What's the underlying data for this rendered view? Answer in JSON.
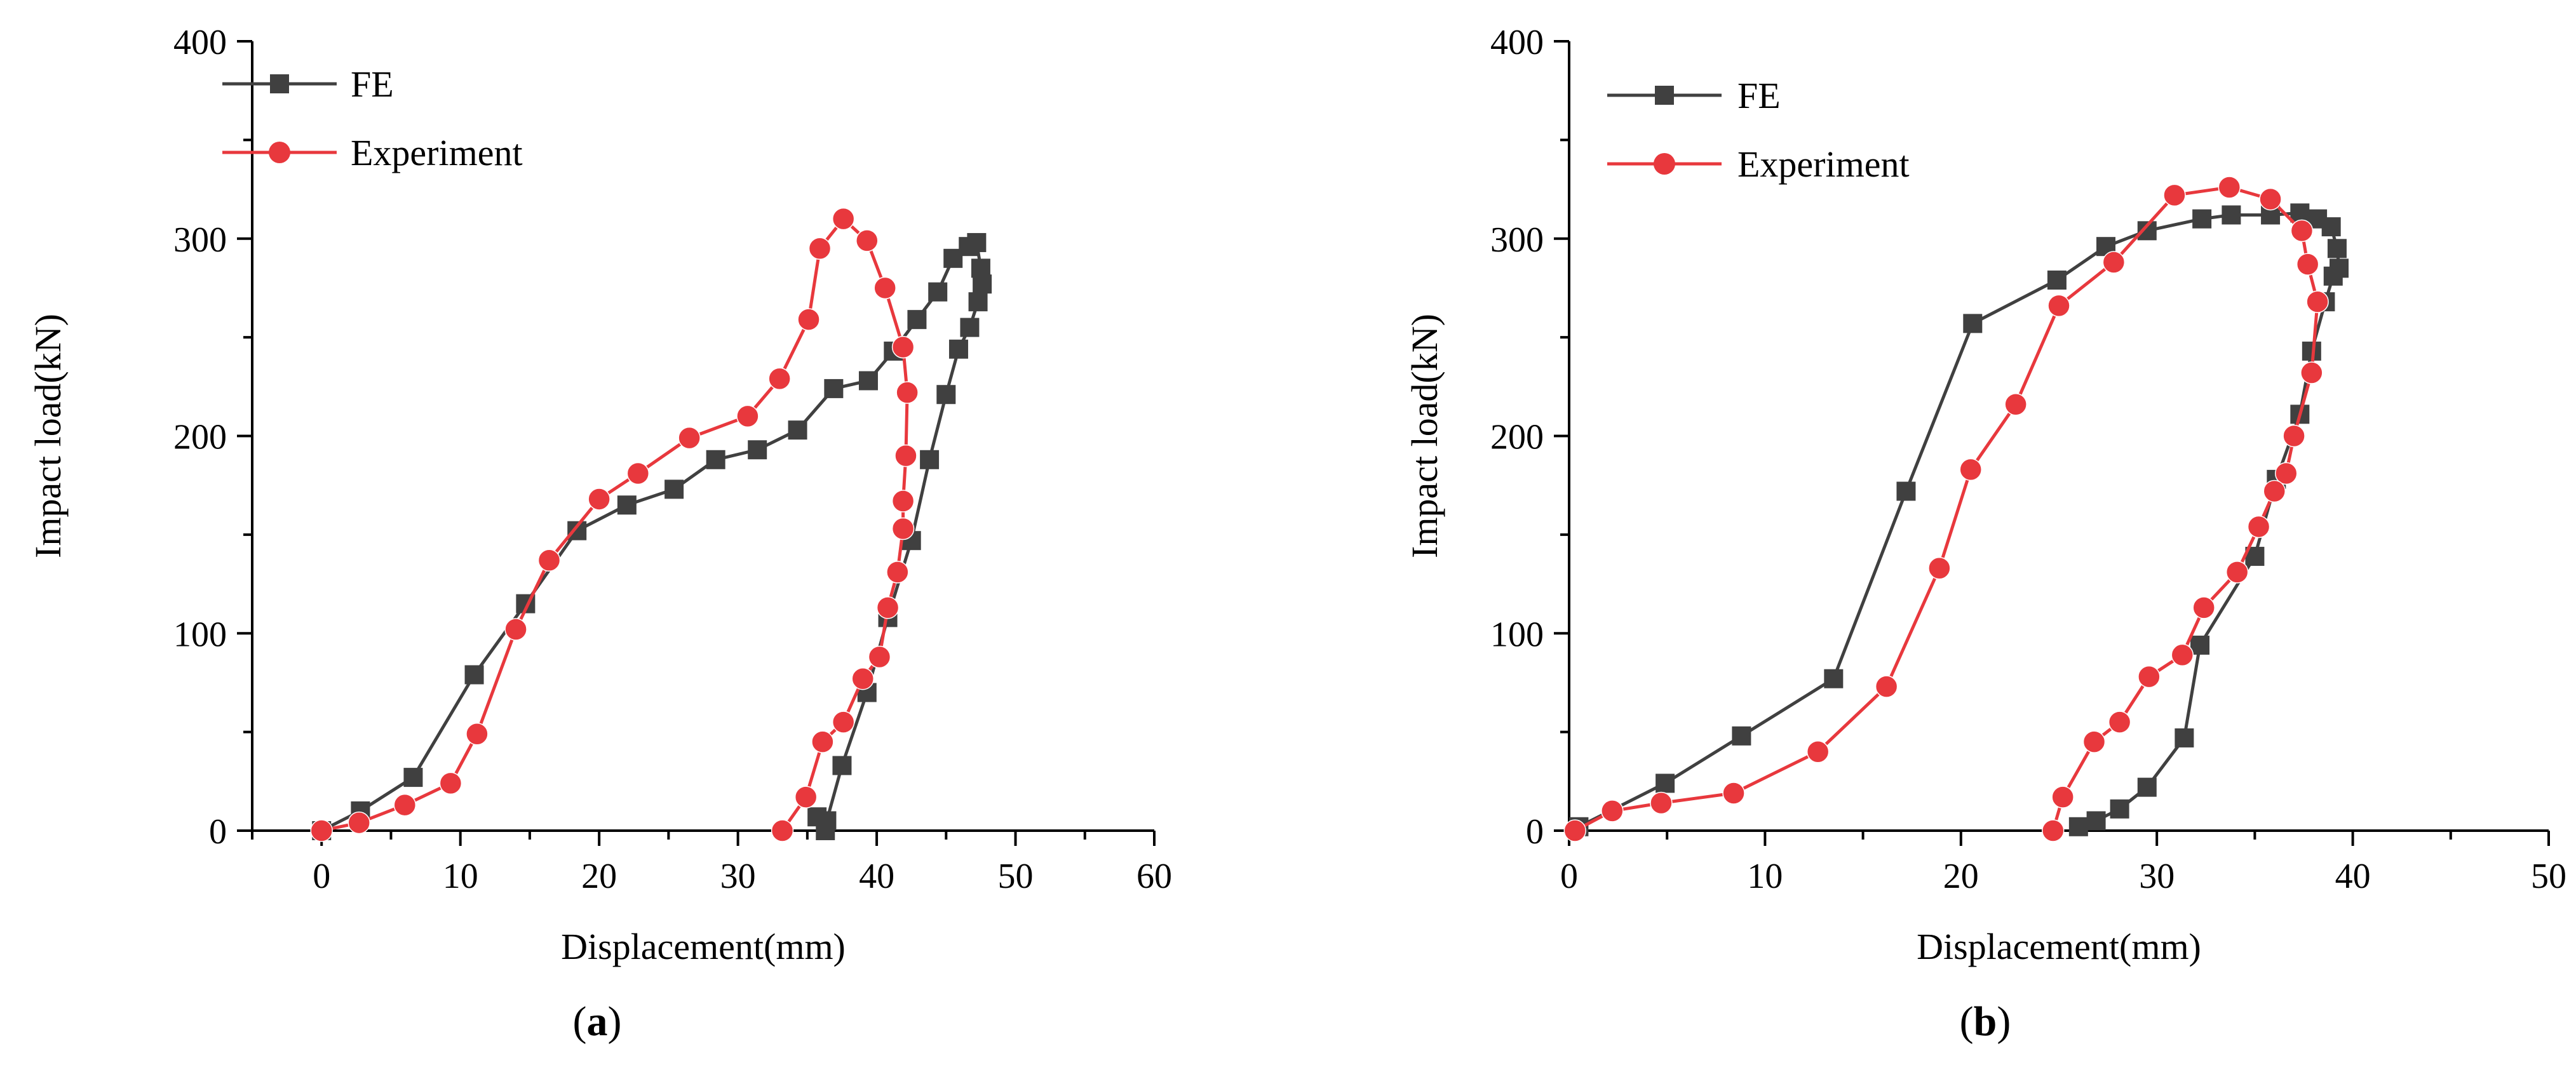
{
  "colors": {
    "fe": "#404040",
    "experiment": "#e8383d",
    "axis": "#000000"
  },
  "chart_data": [
    {
      "type": "line",
      "caption_letter": "a",
      "xlabel": "Displacement(mm)",
      "ylabel": "Impact load(kN)",
      "xlim": [
        -5,
        60
      ],
      "ylim": [
        0,
        400
      ],
      "xticks": [
        0,
        10,
        20,
        30,
        40,
        50,
        60
      ],
      "yticks": [
        0,
        100,
        200,
        300,
        400
      ],
      "grid": false,
      "legend_position": "top-left",
      "series": [
        {
          "name": "FE",
          "marker": "square",
          "points": [
            [
              0,
              0
            ],
            [
              2.8,
              10
            ],
            [
              6.6,
              27
            ],
            [
              11,
              79
            ],
            [
              14.7,
              115
            ],
            [
              18.4,
              152
            ],
            [
              22,
              165
            ],
            [
              25.4,
              173
            ],
            [
              28.4,
              188
            ],
            [
              31.4,
              193
            ],
            [
              34.3,
              203
            ],
            [
              36.9,
              224
            ],
            [
              39.4,
              228
            ],
            [
              41.2,
              243
            ],
            [
              42.9,
              259
            ],
            [
              44.4,
              273
            ],
            [
              45.5,
              290
            ],
            [
              46.6,
              296
            ],
            [
              47.2,
              298
            ],
            [
              47.5,
              285
            ],
            [
              47.6,
              277
            ],
            [
              47.3,
              268
            ],
            [
              46.7,
              255
            ],
            [
              45.9,
              244
            ],
            [
              45,
              221
            ],
            [
              43.8,
              188
            ],
            [
              42.5,
              147
            ],
            [
              40.8,
              108
            ],
            [
              39.3,
              70
            ],
            [
              37.5,
              33
            ],
            [
              36.4,
              5
            ],
            [
              35.7,
              7
            ],
            [
              36.3,
              0
            ]
          ]
        },
        {
          "name": "Experiment",
          "marker": "circle",
          "points": [
            [
              0,
              0
            ],
            [
              2.7,
              4
            ],
            [
              6,
              13
            ],
            [
              9.3,
              24
            ],
            [
              11.2,
              49
            ],
            [
              14,
              102
            ],
            [
              16.4,
              137
            ],
            [
              20,
              168
            ],
            [
              22.8,
              181
            ],
            [
              26.5,
              199
            ],
            [
              30.7,
              210
            ],
            [
              33,
              229
            ],
            [
              35.1,
              259
            ],
            [
              35.9,
              295
            ],
            [
              37.6,
              310
            ],
            [
              39.3,
              299
            ],
            [
              40.6,
              275
            ],
            [
              41.9,
              245
            ],
            [
              42.2,
              222
            ],
            [
              42.1,
              190
            ],
            [
              41.9,
              167
            ],
            [
              41.9,
              153
            ],
            [
              41.5,
              131
            ],
            [
              40.8,
              113
            ],
            [
              40.2,
              88
            ],
            [
              39,
              77
            ],
            [
              37.6,
              55
            ],
            [
              36.1,
              45
            ],
            [
              34.9,
              17
            ],
            [
              33.2,
              0
            ]
          ]
        }
      ]
    },
    {
      "type": "line",
      "caption_letter": "b",
      "xlabel": "Displacement(mm)",
      "ylabel": "Impact load(kN)",
      "xlim": [
        0,
        50
      ],
      "ylim": [
        0,
        400
      ],
      "xticks": [
        0,
        10,
        20,
        30,
        40,
        50
      ],
      "yticks": [
        0,
        100,
        200,
        300,
        400
      ],
      "grid": false,
      "legend_position": "top-left",
      "series": [
        {
          "name": "FE",
          "marker": "square",
          "points": [
            [
              0.5,
              2
            ],
            [
              4.9,
              24
            ],
            [
              8.8,
              48
            ],
            [
              13.5,
              77
            ],
            [
              17.2,
              172
            ],
            [
              20.6,
              257
            ],
            [
              24.9,
              279
            ],
            [
              27.4,
              296
            ],
            [
              29.5,
              304
            ],
            [
              32.3,
              310
            ],
            [
              33.8,
              312
            ],
            [
              35.8,
              312
            ],
            [
              37.3,
              313
            ],
            [
              38.2,
              310
            ],
            [
              38.9,
              306
            ],
            [
              39.2,
              295
            ],
            [
              39.3,
              285
            ],
            [
              39,
              281
            ],
            [
              38.6,
              268
            ],
            [
              37.9,
              243
            ],
            [
              37.3,
              211
            ],
            [
              36.1,
              178
            ],
            [
              35,
              139
            ],
            [
              32.2,
              94
            ],
            [
              31.4,
              47
            ],
            [
              29.5,
              22
            ],
            [
              28.1,
              11
            ],
            [
              26.9,
              5
            ],
            [
              26,
              2
            ]
          ]
        },
        {
          "name": "Experiment",
          "marker": "circle",
          "points": [
            [
              0.3,
              0
            ],
            [
              2.2,
              10
            ],
            [
              4.7,
              14
            ],
            [
              8.4,
              19
            ],
            [
              12.7,
              40
            ],
            [
              16.2,
              73
            ],
            [
              18.9,
              133
            ],
            [
              20.5,
              183
            ],
            [
              22.8,
              216
            ],
            [
              25,
              266
            ],
            [
              27.8,
              288
            ],
            [
              30.9,
              322
            ],
            [
              33.7,
              326
            ],
            [
              35.8,
              320
            ],
            [
              37.4,
              304
            ],
            [
              37.7,
              287
            ],
            [
              38.2,
              268
            ],
            [
              37.9,
              232
            ],
            [
              37,
              200
            ],
            [
              36.6,
              181
            ],
            [
              36,
              172
            ],
            [
              35.2,
              154
            ],
            [
              34.1,
              131
            ],
            [
              32.4,
              113
            ],
            [
              31.3,
              89
            ],
            [
              29.6,
              78
            ],
            [
              28.1,
              55
            ],
            [
              26.8,
              45
            ],
            [
              25.2,
              17
            ],
            [
              24.7,
              0
            ]
          ]
        }
      ]
    }
  ]
}
